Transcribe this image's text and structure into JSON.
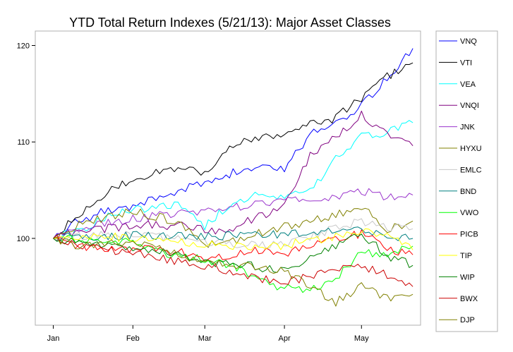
{
  "chart_data": {
    "type": "line",
    "title": "YTD Total Return Indexes (5/21/13): Major Asset Classes",
    "xlabel": "",
    "ylabel": "",
    "x_tick_labels": [
      "Jan",
      "Feb",
      "Mar",
      "Apr",
      "May"
    ],
    "x_tick_days": [
      0,
      31,
      59,
      90,
      120
    ],
    "x_range_days": [
      -7,
      143
    ],
    "y_ticks": [
      100,
      110,
      120
    ],
    "ylim": [
      91.0,
      121.5
    ],
    "grid": false,
    "legend_position": "right",
    "x_days": [
      0,
      10,
      20,
      31,
      40,
      50,
      59,
      70,
      80,
      90,
      100,
      110,
      120,
      130,
      140
    ],
    "series": [
      {
        "name": "VNQ",
        "color": "#0000ff",
        "values": [
          100,
          101.8,
          102.8,
          103.2,
          104.2,
          105.0,
          105.8,
          106.8,
          107.3,
          107.2,
          110.8,
          111.8,
          113.8,
          116.5,
          119.7
        ]
      },
      {
        "name": "VTI",
        "color": "#000000",
        "values": [
          100,
          102.5,
          104.6,
          106.2,
          106.8,
          107.5,
          106.5,
          109.8,
          110.5,
          111.0,
          111.8,
          112.5,
          114.6,
          116.8,
          118.2
        ]
      },
      {
        "name": "VEA",
        "color": "#00ffff",
        "values": [
          100,
          100.8,
          102.2,
          103.0,
          103.2,
          103.5,
          101.3,
          103.8,
          104.6,
          104.2,
          104.8,
          108.2,
          110.5,
          111.0,
          112.0
        ]
      },
      {
        "name": "VNQI",
        "color": "#800080",
        "values": [
          100,
          100.8,
          101.0,
          101.4,
          101.4,
          101.3,
          100.8,
          101.0,
          102.3,
          103.3,
          108.5,
          110.5,
          112.8,
          111.0,
          109.6
        ]
      },
      {
        "name": "JNK",
        "color": "#9933cc",
        "values": [
          100,
          101.0,
          101.5,
          102.0,
          102.4,
          102.7,
          102.9,
          103.2,
          103.5,
          103.8,
          104.0,
          104.3,
          105.0,
          104.2,
          104.5
        ]
      },
      {
        "name": "HYXU",
        "color": "#808000",
        "values": [
          100,
          101.5,
          102.2,
          102.8,
          102.3,
          101.5,
          99.2,
          99.8,
          100.5,
          101.2,
          101.7,
          102.5,
          103.3,
          101.0,
          101.8
        ]
      },
      {
        "name": "EMLC",
        "color": "#c8c8c8",
        "values": [
          100,
          100.2,
          100.3,
          100.5,
          100.3,
          99.8,
          99.6,
          99.5,
          99.2,
          99.5,
          100.2,
          101.0,
          101.8,
          101.2,
          101.0
        ]
      },
      {
        "name": "BND",
        "color": "#008080",
        "values": [
          100,
          100.2,
          100.2,
          100.3,
          100.3,
          100.2,
          100.2,
          100.3,
          100.3,
          100.5,
          100.7,
          100.8,
          100.8,
          100.2,
          100.0
        ]
      },
      {
        "name": "VWO",
        "color": "#00ff00",
        "values": [
          100,
          99.8,
          99.5,
          99.8,
          98.5,
          98.2,
          97.8,
          97.2,
          95.8,
          94.8,
          94.8,
          95.8,
          98.5,
          98.2,
          99.2
        ]
      },
      {
        "name": "PICB",
        "color": "#ff0000",
        "values": [
          100,
          99.2,
          98.8,
          99.0,
          98.8,
          98.5,
          98.0,
          98.3,
          98.8,
          98.5,
          99.2,
          99.8,
          100.5,
          99.0,
          98.3
        ]
      },
      {
        "name": "TIP",
        "color": "#ffff00",
        "values": [
          100,
          100.3,
          100.2,
          100.0,
          99.8,
          99.6,
          99.5,
          99.2,
          99.0,
          99.3,
          99.8,
          100.2,
          100.8,
          100.3,
          98.8
        ]
      },
      {
        "name": "WIP",
        "color": "#008000",
        "values": [
          100,
          99.6,
          99.3,
          99.0,
          98.6,
          98.2,
          97.5,
          97.4,
          97.0,
          96.8,
          97.8,
          99.3,
          100.5,
          98.2,
          97.2
        ]
      },
      {
        "name": "BWX",
        "color": "#cc0000",
        "values": [
          100,
          99.2,
          98.8,
          98.5,
          98.0,
          97.6,
          97.2,
          96.5,
          95.8,
          95.5,
          96.0,
          96.8,
          97.2,
          96.2,
          95.0
        ]
      },
      {
        "name": "DJP",
        "color": "#808000",
        "values": [
          100,
          99.2,
          99.4,
          99.8,
          99.0,
          98.2,
          97.6,
          97.3,
          97.0,
          96.5,
          95.2,
          93.3,
          95.2,
          93.8,
          94.2
        ]
      }
    ]
  }
}
